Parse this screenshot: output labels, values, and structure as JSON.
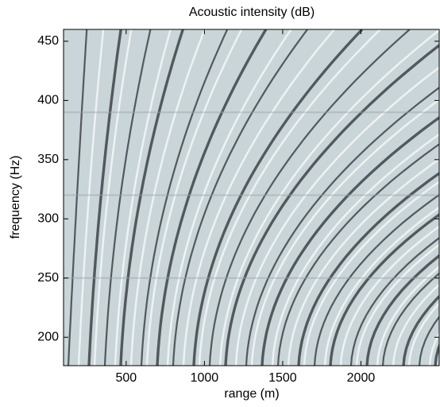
{
  "chart_data": {
    "type": "heatmap",
    "title": "Acoustic intensity (dB)",
    "xlabel": "range (m)",
    "ylabel": "frequency (Hz)",
    "xlim": [
      100,
      2500
    ],
    "xticks": [
      500,
      1000,
      1500,
      2000
    ],
    "ylim": [
      176,
      460
    ],
    "yticks": [
      200,
      250,
      300,
      350,
      400,
      450
    ]
  }
}
